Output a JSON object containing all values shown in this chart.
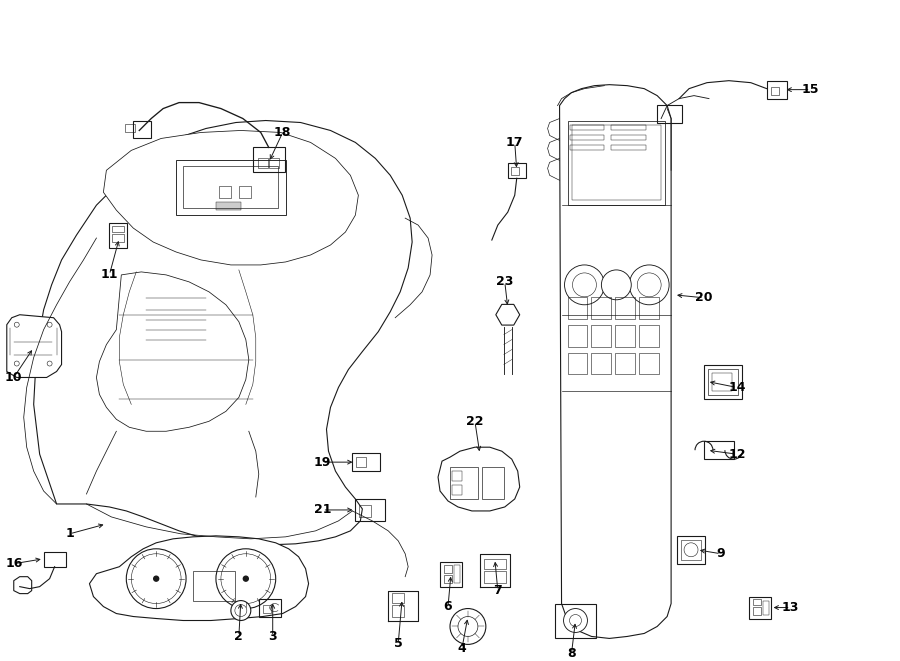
{
  "bg_color": "#ffffff",
  "line_color": "#1a1a1a",
  "text_color": "#000000",
  "fig_width": 9.0,
  "fig_height": 6.61,
  "label_positions": {
    "1": {
      "part": [
        1.05,
        1.35
      ],
      "label": [
        0.68,
        1.25
      ]
    },
    "2": {
      "part": [
        2.4,
        0.58
      ],
      "label": [
        2.38,
        0.22
      ]
    },
    "3": {
      "part": [
        2.72,
        0.58
      ],
      "label": [
        2.72,
        0.22
      ]
    },
    "4": {
      "part": [
        4.68,
        0.42
      ],
      "label": [
        4.62,
        0.1
      ]
    },
    "5": {
      "part": [
        4.02,
        0.6
      ],
      "label": [
        3.98,
        0.15
      ]
    },
    "6": {
      "part": [
        4.51,
        0.85
      ],
      "label": [
        4.48,
        0.52
      ]
    },
    "7": {
      "part": [
        4.95,
        1.0
      ],
      "label": [
        4.98,
        0.68
      ]
    },
    "8": {
      "part": [
        5.76,
        0.38
      ],
      "label": [
        5.72,
        0.05
      ]
    },
    "9": {
      "part": [
        6.98,
        1.09
      ],
      "label": [
        7.22,
        1.05
      ]
    },
    "10": {
      "part": [
        0.32,
        3.12
      ],
      "label": [
        0.12,
        2.82
      ]
    },
    "11": {
      "part": [
        1.18,
        4.22
      ],
      "label": [
        1.08,
        3.85
      ]
    },
    "12": {
      "part": [
        7.08,
        2.09
      ],
      "label": [
        7.38,
        2.05
      ]
    },
    "13": {
      "part": [
        7.72,
        0.51
      ],
      "label": [
        7.92,
        0.51
      ]
    },
    "14": {
      "part": [
        7.08,
        2.78
      ],
      "label": [
        7.38,
        2.72
      ]
    },
    "15": {
      "part": [
        7.85,
        5.71
      ],
      "label": [
        8.12,
        5.71
      ]
    },
    "16": {
      "part": [
        0.42,
        1.0
      ],
      "label": [
        0.12,
        0.95
      ]
    },
    "17": {
      "part": [
        5.17,
        4.9
      ],
      "label": [
        5.15,
        5.18
      ]
    },
    "18": {
      "part": [
        2.68,
        4.98
      ],
      "label": [
        2.82,
        5.28
      ]
    },
    "19": {
      "part": [
        3.55,
        1.97
      ],
      "label": [
        3.22,
        1.97
      ]
    },
    "20": {
      "part": [
        6.75,
        3.65
      ],
      "label": [
        7.05,
        3.62
      ]
    },
    "21": {
      "part": [
        3.55,
        1.49
      ],
      "label": [
        3.22,
        1.49
      ]
    },
    "22": {
      "part": [
        4.8,
        2.05
      ],
      "label": [
        4.75,
        2.38
      ]
    },
    "23": {
      "part": [
        5.08,
        3.52
      ],
      "label": [
        5.05,
        3.78
      ]
    }
  }
}
